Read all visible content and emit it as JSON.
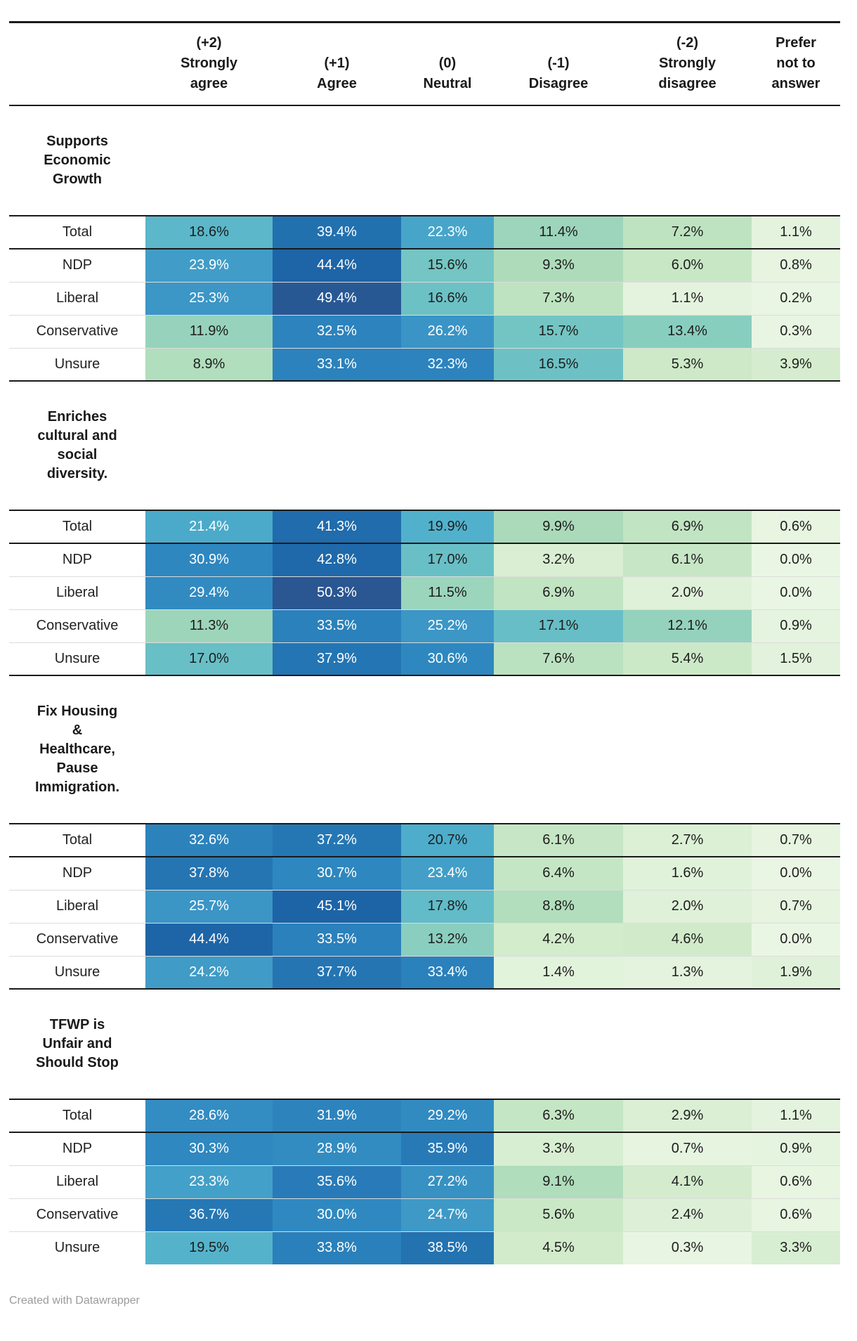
{
  "chart_data": {
    "type": "heatmap-table",
    "value_suffix": "%",
    "columns": [
      {
        "id": "strongly-agree",
        "score": "(+2)",
        "lines": [
          "(+2)",
          "Strongly",
          "agree"
        ]
      },
      {
        "id": "agree",
        "score": "(+1)",
        "lines": [
          "(+1)",
          "Agree"
        ]
      },
      {
        "id": "neutral",
        "score": "(0)",
        "lines": [
          "(0)",
          "Neutral"
        ]
      },
      {
        "id": "disagree",
        "score": "(-1)",
        "lines": [
          "(-1)",
          "Disagree"
        ]
      },
      {
        "id": "strongly-disagree",
        "score": "(-2)",
        "lines": [
          "(-2)",
          "Strongly",
          "disagree"
        ]
      },
      {
        "id": "prefer-not-to-answer",
        "score": "",
        "lines": [
          "Prefer",
          "not to",
          "answer"
        ]
      }
    ],
    "sections": [
      {
        "title": "Supports Economic Growth",
        "title_lines": [
          "Supports",
          "Economic",
          "Growth"
        ],
        "rows": [
          {
            "label": "Total",
            "values": [
              18.6,
              39.4,
              22.3,
              11.4,
              7.2,
              1.1
            ]
          },
          {
            "label": "NDP",
            "values": [
              23.9,
              44.4,
              15.6,
              9.3,
              6.0,
              0.8
            ]
          },
          {
            "label": "Liberal",
            "values": [
              25.3,
              49.4,
              16.6,
              7.3,
              1.1,
              0.2
            ]
          },
          {
            "label": "Conservative",
            "values": [
              11.9,
              32.5,
              26.2,
              15.7,
              13.4,
              0.3
            ]
          },
          {
            "label": "Unsure",
            "values": [
              8.9,
              33.1,
              32.3,
              16.5,
              5.3,
              3.9
            ]
          }
        ]
      },
      {
        "title": "Enriches cultural and social diversity.",
        "title_lines": [
          "Enriches",
          "cultural and",
          "social",
          "diversity."
        ],
        "rows": [
          {
            "label": "Total",
            "values": [
              21.4,
              41.3,
              19.9,
              9.9,
              6.9,
              0.6
            ]
          },
          {
            "label": "NDP",
            "values": [
              30.9,
              42.8,
              17.0,
              3.2,
              6.1,
              0.0
            ]
          },
          {
            "label": "Liberal",
            "values": [
              29.4,
              50.3,
              11.5,
              6.9,
              2.0,
              0.0
            ]
          },
          {
            "label": "Conservative",
            "values": [
              11.3,
              33.5,
              25.2,
              17.1,
              12.1,
              0.9
            ]
          },
          {
            "label": "Unsure",
            "values": [
              17.0,
              37.9,
              30.6,
              7.6,
              5.4,
              1.5
            ]
          }
        ]
      },
      {
        "title": "Fix Housing & Healthcare, Pause Immigration.",
        "title_lines": [
          "Fix Housing",
          "&",
          "Healthcare,",
          "Pause",
          "Immigration."
        ],
        "rows": [
          {
            "label": "Total",
            "values": [
              32.6,
              37.2,
              20.7,
              6.1,
              2.7,
              0.7
            ]
          },
          {
            "label": "NDP",
            "values": [
              37.8,
              30.7,
              23.4,
              6.4,
              1.6,
              0.0
            ]
          },
          {
            "label": "Liberal",
            "values": [
              25.7,
              45.1,
              17.8,
              8.8,
              2.0,
              0.7
            ]
          },
          {
            "label": "Conservative",
            "values": [
              44.4,
              33.5,
              13.2,
              4.2,
              4.6,
              0.0
            ]
          },
          {
            "label": "Unsure",
            "values": [
              24.2,
              37.7,
              33.4,
              1.4,
              1.3,
              1.9
            ]
          }
        ]
      },
      {
        "title": "TFWP is Unfair and Should Stop",
        "title_lines": [
          "TFWP is",
          "Unfair and",
          "Should Stop"
        ],
        "rows": [
          {
            "label": "Total",
            "values": [
              28.6,
              31.9,
              29.2,
              6.3,
              2.9,
              1.1
            ]
          },
          {
            "label": "NDP",
            "values": [
              30.3,
              28.9,
              35.9,
              3.3,
              0.7,
              0.9
            ]
          },
          {
            "label": "Liberal",
            "values": [
              23.3,
              35.6,
              27.2,
              9.1,
              4.1,
              0.6
            ]
          },
          {
            "label": "Conservative",
            "values": [
              36.7,
              30.0,
              24.7,
              5.6,
              2.4,
              0.6
            ]
          },
          {
            "label": "Unsure",
            "values": [
              19.5,
              33.8,
              38.5,
              4.5,
              0.3,
              3.3
            ]
          }
        ]
      }
    ],
    "color_scale": {
      "stops": [
        [
          0,
          "#eaf6e4"
        ],
        [
          5,
          "#cfeac8"
        ],
        [
          10,
          "#a9dab9"
        ],
        [
          15,
          "#79c8c2"
        ],
        [
          20,
          "#50b1cc"
        ],
        [
          25,
          "#3d97c6"
        ],
        [
          30,
          "#2f89c0"
        ],
        [
          35,
          "#297db9"
        ],
        [
          40,
          "#216fae"
        ],
        [
          45,
          "#1d64a6"
        ],
        [
          50.5,
          "#2b5590"
        ]
      ],
      "white_text_threshold": 21,
      "text_dark": "#1d1d1d",
      "text_light": "#ffffff"
    },
    "rules": {
      "dark": "#1a1a1a",
      "light": "#dcdcdc"
    }
  },
  "footer": {
    "attribution": "Created with Datawrapper"
  }
}
